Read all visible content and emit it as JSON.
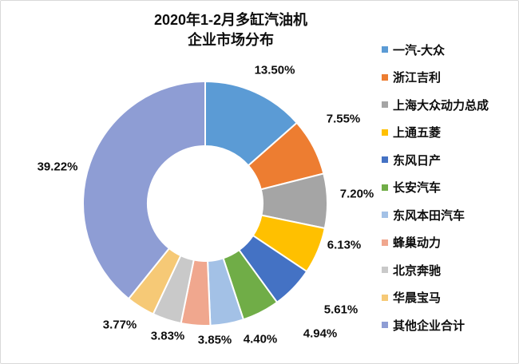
{
  "title": {
    "line1": "2020年1-2月多缸汽油机",
    "line2": "企业市场分布"
  },
  "chart_data": {
    "type": "pie",
    "subtype": "donut",
    "title": "2020年1-2月多缸汽油机 企业市场分布",
    "legend_position": "right",
    "start_angle_deg": 0,
    "direction": "clockwise",
    "labels_position": "outside",
    "hole_ratio": 0.47,
    "series": [
      {
        "name": "企业市场份额",
        "points": [
          {
            "label": "一汽-大众",
            "value": 13.5,
            "display": "13.50%",
            "color": "#5B9BD5"
          },
          {
            "label": "浙江吉利",
            "value": 7.55,
            "display": "7.55%",
            "color": "#ED7D31"
          },
          {
            "label": "上海大众动力总成",
            "value": 7.2,
            "display": "7.20%",
            "color": "#A5A5A5"
          },
          {
            "label": "上通五菱",
            "value": 6.13,
            "display": "6.13%",
            "color": "#FFC000"
          },
          {
            "label": "东风日产",
            "value": 5.61,
            "display": "5.61%",
            "color": "#4472C4"
          },
          {
            "label": "长安汽车",
            "value": 4.94,
            "display": "4.94%",
            "color": "#70AD47"
          },
          {
            "label": "东风本田汽车",
            "value": 4.4,
            "display": "4.40%",
            "color": "#A3C1E6"
          },
          {
            "label": "蜂巢动力",
            "value": 3.85,
            "display": "3.85%",
            "color": "#F0A78E"
          },
          {
            "label": "北京奔驰",
            "value": 3.83,
            "display": "3.83%",
            "color": "#C9C9C9"
          },
          {
            "label": "华晨宝马",
            "value": 3.77,
            "display": "3.77%",
            "color": "#F6C976"
          },
          {
            "label": "其他企业合计",
            "value": 39.22,
            "display": "39.22%",
            "color": "#8E9DD4"
          }
        ]
      }
    ]
  }
}
